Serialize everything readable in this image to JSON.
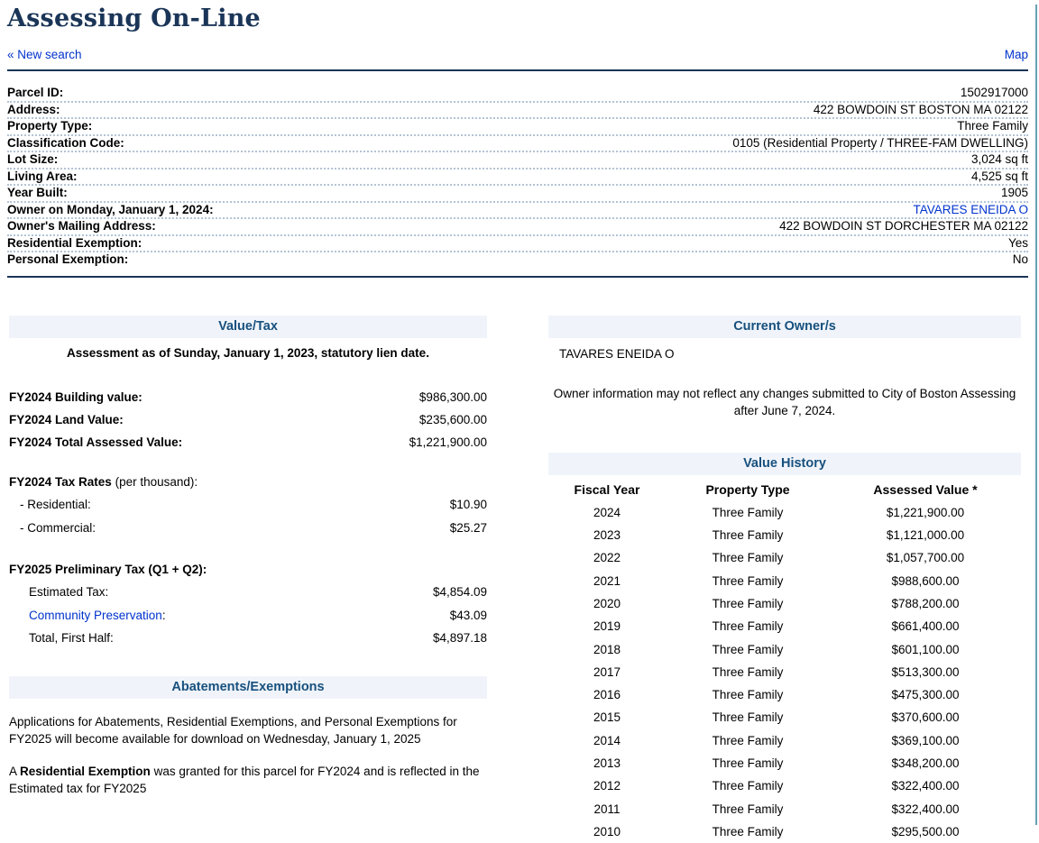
{
  "page": {
    "title": "Assessing On-Line",
    "new_search": "« New search",
    "map": "Map"
  },
  "colors": {
    "navy_rule": "#1a3557",
    "section_header_text": "#17507e",
    "section_header_bg": "#f0f4fa",
    "link_blue": "#0033cc",
    "dotted_leader": "#b3c4d5",
    "right_edge_line": "#68a0b4"
  },
  "parcel": {
    "rows": [
      {
        "label": "Parcel ID:",
        "value": "1502917000"
      },
      {
        "label": "Address:",
        "value": "422 BOWDOIN ST BOSTON MA 02122"
      },
      {
        "label": "Property Type:",
        "value": "Three Family"
      },
      {
        "label": "Classification Code:",
        "value": "0105 (Residential Property / THREE-FAM DWELLING)"
      },
      {
        "label": "Lot Size:",
        "value": "3,024 sq ft"
      },
      {
        "label": "Living Area:",
        "value": "4,525 sq ft"
      },
      {
        "label": "Year Built:",
        "value": "1905"
      },
      {
        "label": "Owner on Monday, January 1, 2024:",
        "value": "TAVARES ENEIDA O"
      },
      {
        "label": "Owner's Mailing Address:",
        "value": "422 BOWDOIN ST DORCHESTER MA 02122"
      },
      {
        "label": "Residential Exemption:",
        "value": "Yes"
      },
      {
        "label": "Personal Exemption:",
        "value": "No"
      }
    ]
  },
  "value_tax": {
    "header": "Value/Tax",
    "assessment_note": "Assessment as of Sunday, January 1, 2023, statutory lien date.",
    "building_label": "FY2024 Building value:",
    "building_value": "$986,300.00",
    "land_label": "FY2024 Land Value:",
    "land_value": "$235,600.00",
    "total_label": "FY2024 Total Assessed Value:",
    "total_value": "$1,221,900.00",
    "tax_rates_label": "FY2024 Tax Rates",
    "tax_rates_suffix": " (per thousand):",
    "residential_label": "- Residential:",
    "residential_value": "$10.90",
    "commercial_label": "- Commercial:",
    "commercial_value": "$25.27",
    "prelim_label": "FY2025 Preliminary Tax (Q1 + Q2):",
    "estimated_label": "Estimated Tax:",
    "estimated_value": "$4,854.09",
    "community_label": "Community Preservation",
    "community_colon": ":",
    "community_value": "$43.09",
    "total_half_label": "Total, First Half:",
    "total_half_value": "$4,897.18"
  },
  "abatements": {
    "header": "Abatements/Exemptions",
    "para1": "Applications for Abatements, Residential Exemptions, and Personal Exemptions for FY2025 will become available for download on Wednesday, January 1, 2025",
    "para2_prefix": "A ",
    "para2_bold": "Residential Exemption",
    "para2_suffix": " was granted for this parcel for FY2024 and is reflected in the Estimated tax for FY2025"
  },
  "current_owners": {
    "header": "Current Owner/s",
    "owner": "TAVARES ENEIDA O",
    "note": "Owner information may not reflect any changes submitted to City of Boston Assessing after June 7, 2024."
  },
  "value_history": {
    "header": "Value History",
    "columns": [
      "Fiscal Year",
      "Property Type",
      "Assessed Value *"
    ],
    "rows": [
      [
        "2024",
        "Three Family",
        "$1,221,900.00"
      ],
      [
        "2023",
        "Three Family",
        "$1,121,000.00"
      ],
      [
        "2022",
        "Three Family",
        "$1,057,700.00"
      ],
      [
        "2021",
        "Three Family",
        "$988,600.00"
      ],
      [
        "2020",
        "Three Family",
        "$788,200.00"
      ],
      [
        "2019",
        "Three Family",
        "$661,400.00"
      ],
      [
        "2018",
        "Three Family",
        "$601,100.00"
      ],
      [
        "2017",
        "Three Family",
        "$513,300.00"
      ],
      [
        "2016",
        "Three Family",
        "$475,300.00"
      ],
      [
        "2015",
        "Three Family",
        "$370,600.00"
      ],
      [
        "2014",
        "Three Family",
        "$369,100.00"
      ],
      [
        "2013",
        "Three Family",
        "$348,200.00"
      ],
      [
        "2012",
        "Three Family",
        "$322,400.00"
      ],
      [
        "2011",
        "Three Family",
        "$322,400.00"
      ],
      [
        "2010",
        "Three Family",
        "$295,500.00"
      ]
    ]
  }
}
